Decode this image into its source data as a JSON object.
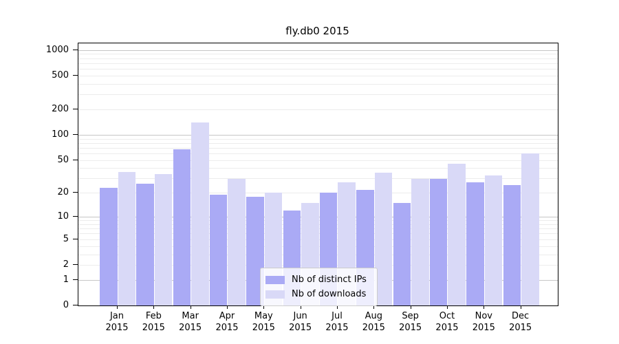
{
  "chart_data": {
    "type": "bar",
    "title": "fly.db0 2015",
    "yscale": "symlog",
    "ylim": [
      0,
      1200
    ],
    "grid": true,
    "legend_position": "bottom-center-inside",
    "year": "2015",
    "months": [
      "Jan",
      "Feb",
      "Mar",
      "Apr",
      "May",
      "Jun",
      "Jul",
      "Aug",
      "Sep",
      "Oct",
      "Nov",
      "Dec"
    ],
    "categories": [
      "Jan 2015",
      "Feb 2015",
      "Mar 2015",
      "Apr 2015",
      "May 2015",
      "Jun 2015",
      "Jul 2015",
      "Aug 2015",
      "Sep 2015",
      "Oct 2015",
      "Nov 2015",
      "Dec 2015"
    ],
    "yticks": [
      0,
      1,
      2,
      5,
      10,
      20,
      50,
      100,
      200,
      500,
      1000
    ],
    "ytick_labels": [
      "0",
      "1",
      "2",
      "5",
      "10",
      "20",
      "50",
      "100",
      "200",
      "500",
      "1000"
    ],
    "grid_minor_values": [
      2,
      3,
      4,
      5,
      6,
      7,
      8,
      9,
      20,
      30,
      40,
      50,
      60,
      70,
      80,
      90,
      200,
      300,
      400,
      500,
      600,
      700,
      800,
      900
    ],
    "grid_major_values": [
      1,
      10,
      100,
      1000
    ],
    "series": [
      {
        "name": "Nb of distinct IPs",
        "color": "#aaaaf5",
        "values": [
          23,
          26,
          68,
          19,
          18,
          12,
          20,
          22,
          15,
          30,
          27,
          25
        ]
      },
      {
        "name": "Nb of downloads",
        "color": "#d9d9f7",
        "values": [
          36,
          34,
          140,
          30,
          20,
          15,
          27,
          35,
          30,
          45,
          33,
          60
        ]
      }
    ]
  }
}
